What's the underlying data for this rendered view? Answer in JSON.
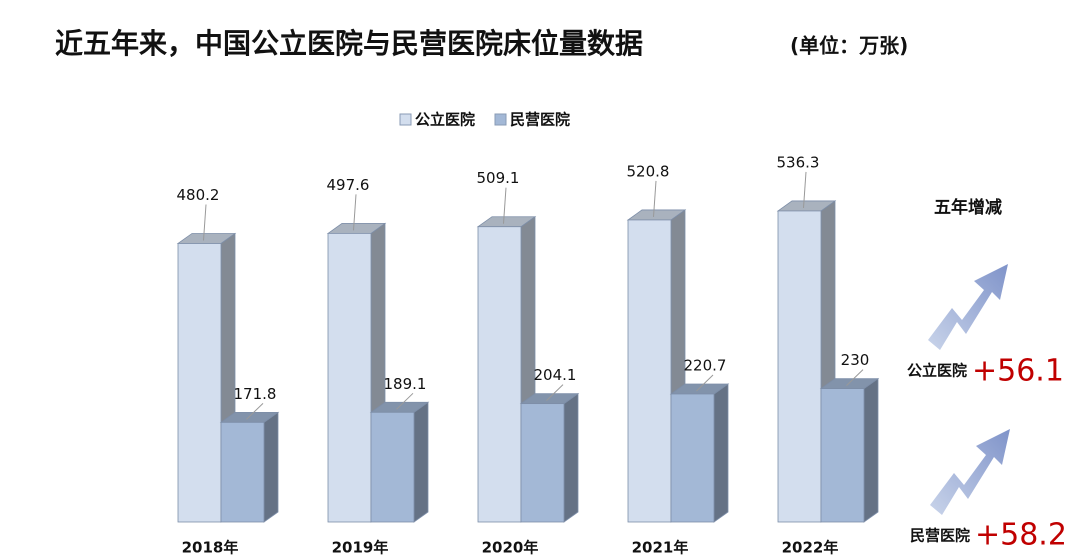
{
  "chart_data": {
    "type": "bar",
    "title": "近五年来，中国公立医院与民营医院床位量数据",
    "subtitle": "(单位：万张)",
    "categories": [
      "2018年",
      "2019年",
      "2020年",
      "2021年",
      "2022年"
    ],
    "series": [
      {
        "name": "公立医院",
        "color": "#d3deee",
        "values": [
          480.2,
          497.6,
          509.1,
          520.8,
          536.3
        ]
      },
      {
        "name": "民营医院",
        "color": "#a3b8d6",
        "values": [
          171.8,
          189.1,
          204.1,
          220.7,
          230
        ]
      }
    ],
    "ylim": [
      0,
      600
    ],
    "legend": "top",
    "annotations": {
      "title": "五年增减",
      "items": [
        {
          "name": "公立医院",
          "text": "+56.1"
        },
        {
          "name": "民营医院",
          "text": "+58.2"
        }
      ]
    }
  }
}
